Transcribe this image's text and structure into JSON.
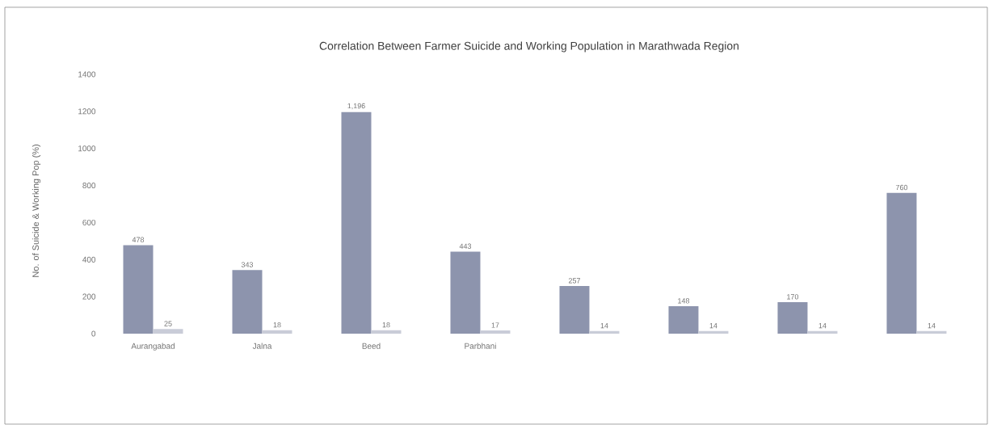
{
  "chart_data": {
    "type": "bar",
    "title": "Correlation Between Farmer Suicide and Working Population in Marathwada Region",
    "ylabel": "No. of Suicide & Working Pop (%)",
    "categories": [
      "Aurangabad",
      "Jalna",
      "Beed",
      "Parbhani",
      null,
      null,
      null,
      null
    ],
    "series": [
      {
        "color": "#8d94ad",
        "values": [
          478,
          343,
          1196,
          443,
          257,
          148,
          170,
          760
        ],
        "value_labels": [
          "478",
          "343",
          "1,196",
          "443",
          "257",
          "148",
          "170",
          "760"
        ]
      },
      {
        "color": "#c9ccd8",
        "values": [
          25,
          18,
          18,
          17,
          14,
          14,
          14,
          14
        ],
        "value_labels": [
          "25",
          "18",
          "18",
          "17",
          "14",
          "14",
          "14",
          "14"
        ]
      }
    ],
    "ylim": [
      0,
      1400
    ],
    "yticks": [
      0,
      200,
      400,
      600,
      800,
      1000,
      1200,
      1400
    ],
    "grid": false
  }
}
